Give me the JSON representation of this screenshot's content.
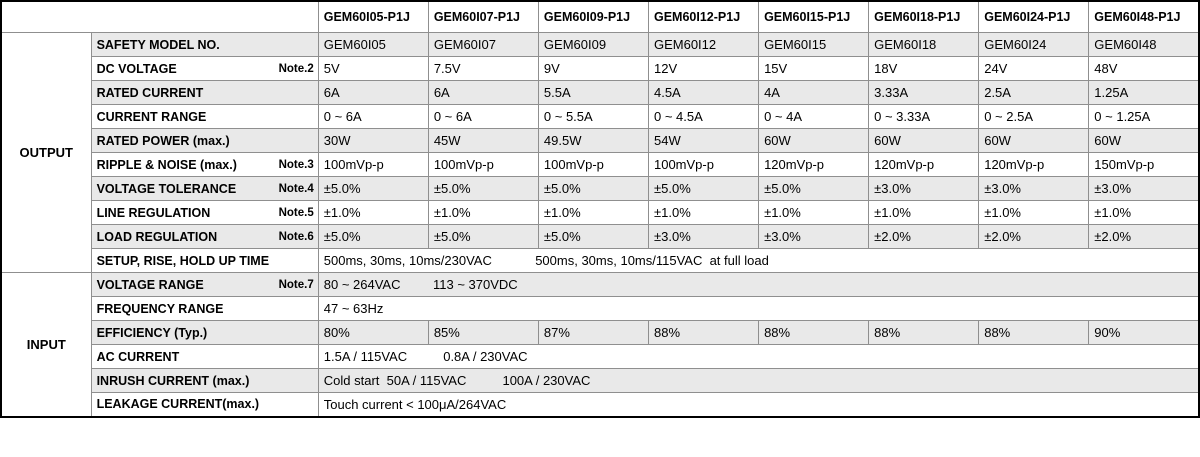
{
  "sections": [
    {
      "label": "OUTPUT"
    },
    {
      "label": "INPUT"
    }
  ],
  "columns": [
    "GEM60I05-P1J",
    "GEM60I07-P1J",
    "GEM60I09-P1J",
    "GEM60I12-P1J",
    "GEM60I15-P1J",
    "GEM60I18-P1J",
    "GEM60I24-P1J",
    "GEM60I48-P1J"
  ],
  "rows": [
    {
      "label": "SAFETY MODEL NO.",
      "note": "",
      "cells": [
        "GEM60I05",
        "GEM60I07",
        "GEM60I09",
        "GEM60I12",
        "GEM60I15",
        "GEM60I18",
        "GEM60I24",
        "GEM60I48"
      ]
    },
    {
      "label": "DC VOLTAGE",
      "note": "Note.2",
      "cells": [
        "5V",
        "7.5V",
        "9V",
        "12V",
        "15V",
        "18V",
        "24V",
        "48V"
      ]
    },
    {
      "label": "RATED CURRENT",
      "note": "",
      "cells": [
        "6A",
        "6A",
        "5.5A",
        "4.5A",
        "4A",
        "3.33A",
        "2.5A",
        "1.25A"
      ]
    },
    {
      "label": "CURRENT RANGE",
      "note": "",
      "cells": [
        "0 ~ 6A",
        "0 ~ 6A",
        "0 ~ 5.5A",
        "0 ~ 4.5A",
        "0 ~ 4A",
        "0 ~ 3.33A",
        "0 ~ 2.5A",
        "0 ~ 1.25A"
      ]
    },
    {
      "label": "RATED POWER (max.)",
      "note": "",
      "cells": [
        "30W",
        "45W",
        "49.5W",
        "54W",
        "60W",
        "60W",
        "60W",
        "60W"
      ]
    },
    {
      "label": "RIPPLE & NOISE (max.)",
      "note": "Note.3",
      "cells": [
        "100mVp-p",
        "100mVp-p",
        "100mVp-p",
        "100mVp-p",
        "120mVp-p",
        "120mVp-p",
        "120mVp-p",
        "150mVp-p"
      ]
    },
    {
      "label": "VOLTAGE TOLERANCE",
      "note": "Note.4",
      "cells": [
        "±5.0%",
        "±5.0%",
        "±5.0%",
        "±5.0%",
        "±5.0%",
        "±3.0%",
        "±3.0%",
        "±3.0%"
      ]
    },
    {
      "label": "LINE REGULATION",
      "note": "Note.5",
      "cells": [
        "±1.0%",
        "±1.0%",
        "±1.0%",
        "±1.0%",
        "±1.0%",
        "±1.0%",
        "±1.0%",
        "±1.0%"
      ]
    },
    {
      "label": "LOAD REGULATION",
      "note": "Note.6",
      "cells": [
        "±5.0%",
        "±5.0%",
        "±5.0%",
        "±3.0%",
        "±3.0%",
        "±2.0%",
        "±2.0%",
        "±2.0%"
      ]
    },
    {
      "label": "SETUP, RISE, HOLD UP TIME",
      "note": "",
      "span": "500ms, 30ms, 10ms/230VAC            500ms, 30ms, 10ms/115VAC  at full load"
    },
    {
      "label": "VOLTAGE RANGE",
      "note": "Note.7",
      "span": "80 ~ 264VAC         113 ~ 370VDC"
    },
    {
      "label": "FREQUENCY RANGE",
      "note": "",
      "span": "47 ~ 63Hz"
    },
    {
      "label": "EFFICIENCY (Typ.)",
      "note": "",
      "cells": [
        "80%",
        "85%",
        "87%",
        "88%",
        "88%",
        "88%",
        "88%",
        "90%"
      ]
    },
    {
      "label": "AC CURRENT",
      "note": "",
      "span": "1.5A / 115VAC          0.8A / 230VAC"
    },
    {
      "label": "INRUSH CURRENT (max.)",
      "note": "",
      "span": "Cold start  50A / 115VAC          100A / 230VAC"
    },
    {
      "label": "LEAKAGE CURRENT(max.)",
      "note": "",
      "span": "Touch current < 100μA/264VAC"
    }
  ]
}
